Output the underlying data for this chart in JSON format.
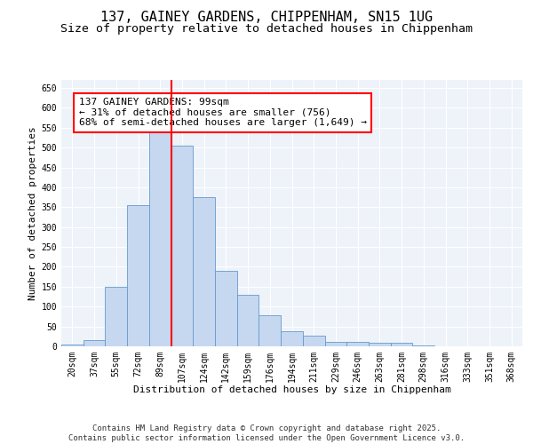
{
  "title_line1": "137, GAINEY GARDENS, CHIPPENHAM, SN15 1UG",
  "title_line2": "Size of property relative to detached houses in Chippenham",
  "xlabel": "Distribution of detached houses by size in Chippenham",
  "ylabel": "Number of detached properties",
  "categories": [
    "20sqm",
    "37sqm",
    "55sqm",
    "72sqm",
    "89sqm",
    "107sqm",
    "124sqm",
    "142sqm",
    "159sqm",
    "176sqm",
    "194sqm",
    "211sqm",
    "229sqm",
    "246sqm",
    "263sqm",
    "281sqm",
    "298sqm",
    "316sqm",
    "333sqm",
    "351sqm",
    "368sqm"
  ],
  "values": [
    5,
    15,
    150,
    355,
    540,
    505,
    375,
    190,
    130,
    78,
    38,
    27,
    12,
    12,
    10,
    8,
    2,
    1,
    0,
    0,
    0
  ],
  "bar_color": "#c5d8f0",
  "bar_edge_color": "#6699cc",
  "vline_color": "red",
  "vline_xindex": 4,
  "annotation_text": "137 GAINEY GARDENS: 99sqm\n← 31% of detached houses are smaller (756)\n68% of semi-detached houses are larger (1,649) →",
  "annotation_box_color": "white",
  "annotation_edge_color": "red",
  "ylim": [
    0,
    670
  ],
  "yticks": [
    0,
    50,
    100,
    150,
    200,
    250,
    300,
    350,
    400,
    450,
    500,
    550,
    600,
    650
  ],
  "footer_text": "Contains HM Land Registry data © Crown copyright and database right 2025.\nContains public sector information licensed under the Open Government Licence v3.0.",
  "background_color": "#eef2f9",
  "grid_color": "white",
  "title_fontsize": 11,
  "subtitle_fontsize": 9.5,
  "axis_label_fontsize": 8,
  "tick_fontsize": 7,
  "annotation_fontsize": 8,
  "footer_fontsize": 6.5
}
